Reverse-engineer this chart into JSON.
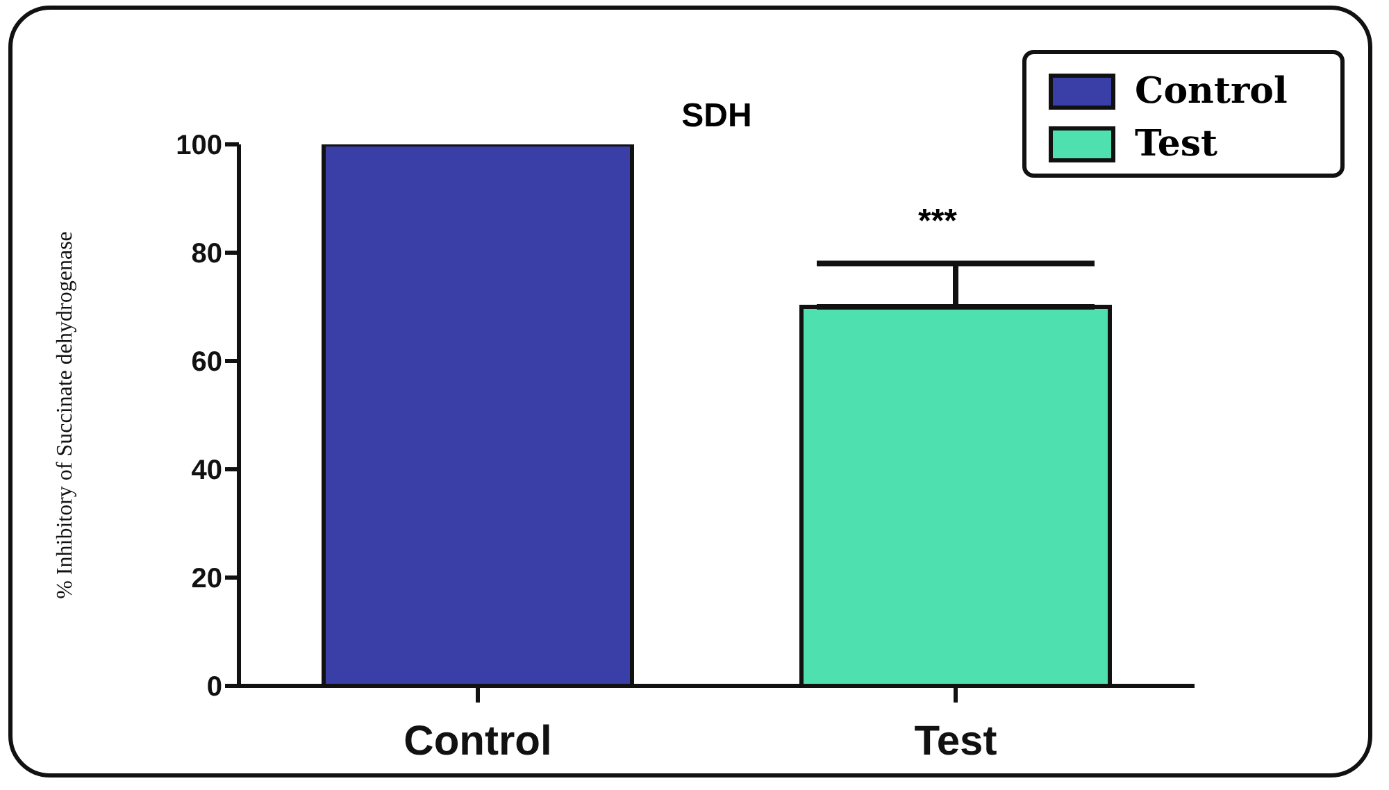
{
  "chart_data": {
    "type": "bar",
    "title": "SDH",
    "ylabel": "% Inhibitory of Succinate dehydrogenase",
    "categories": [
      "Control",
      "Test"
    ],
    "series": [
      {
        "name": "Control",
        "color": "#3a3fa8",
        "values": [
          100,
          null
        ]
      },
      {
        "name": "Test",
        "color": "#4fe0b0",
        "values": [
          null,
          70
        ],
        "errors": [
          null,
          [
            70,
            78
          ]
        ]
      }
    ],
    "ylim": [
      0,
      100
    ],
    "yticks": [
      0,
      20,
      40,
      60,
      80,
      100
    ],
    "legend": "top right",
    "annotations": [
      "***"
    ]
  }
}
